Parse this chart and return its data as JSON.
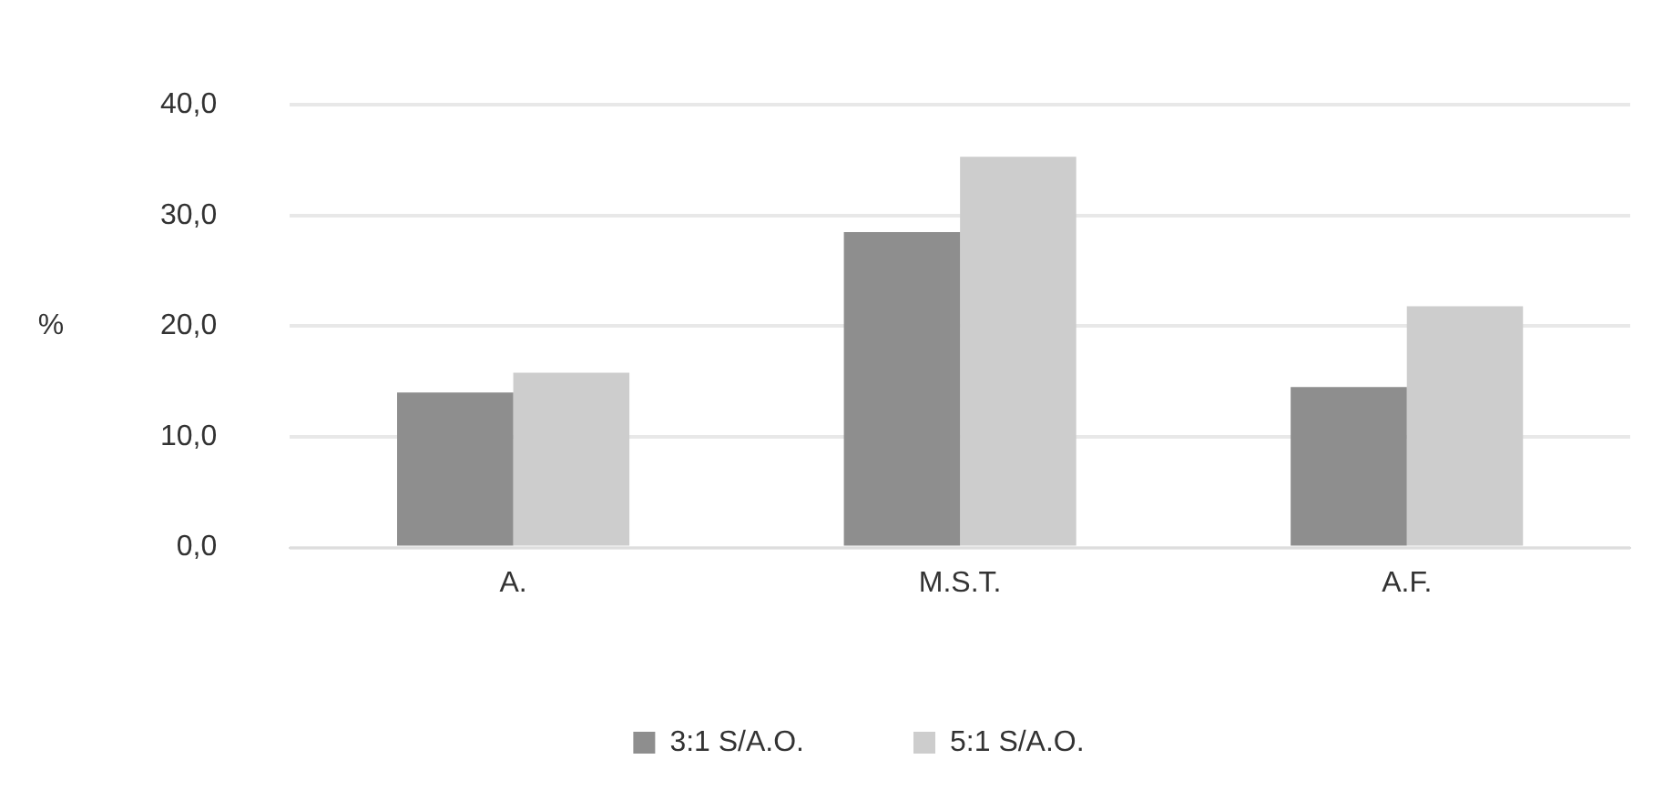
{
  "chart_data": {
    "type": "bar",
    "ylabel": "%",
    "categories": [
      "A.",
      "M.S.T.",
      "A.F."
    ],
    "series": [
      {
        "name": "3:1 S/A.O.",
        "color": "#8e8e8e",
        "values": [
          14.0,
          28.5,
          14.5
        ]
      },
      {
        "name": "5:1 S/A.O.",
        "color": "#cdcdcd",
        "values": [
          15.8,
          35.3,
          21.8
        ]
      }
    ],
    "ylim": [
      0,
      40
    ],
    "yticks": [
      {
        "value": 0,
        "label": "0,0"
      },
      {
        "value": 10,
        "label": "10,0"
      },
      {
        "value": 20,
        "label": "20,0"
      },
      {
        "value": 30,
        "label": "30,0"
      },
      {
        "value": 40,
        "label": "40,0"
      }
    ],
    "grid": "y",
    "legend": "bottom"
  }
}
